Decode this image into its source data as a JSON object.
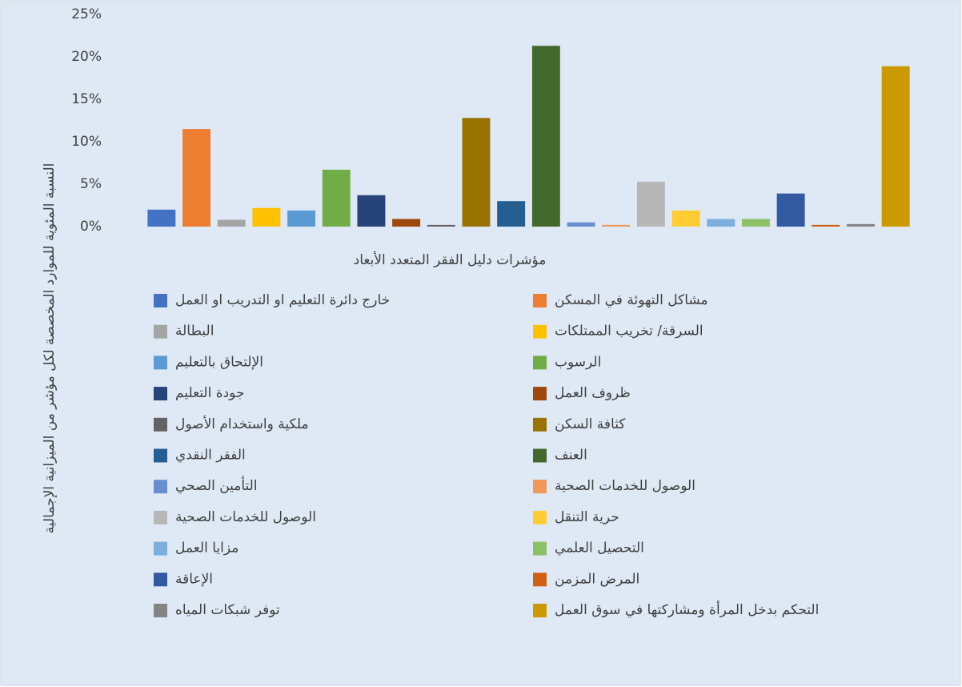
{
  "chart_data": {
    "type": "bar",
    "x_label": "مؤشرات دليل الفقر المتعدد الأبعاد",
    "y_label": "النسبة المئوية للموارد المخصصة لكل مؤشر من الميزانية الإجمالية",
    "categories": [
      "خارج دائرة التعليم او التدريب او العمل",
      "مشاكل التهوئة في المسكن",
      "البطالة",
      "السرقة/ تخريب الممتلكات",
      "الإلتحاق بالتعليم",
      "الرسوب",
      "جودة التعليم",
      "ظروف العمل",
      "ملكية واستخدام الأصول",
      "كثافة السكن",
      "الفقر النقدي",
      "العنف",
      "التأمين الصحي",
      "الوصول للخدمات الصحية",
      "الوصول للخدمات الصحية",
      "حرية التنقل",
      "مزايا العمل",
      "التحصيل العلمي",
      "الإعاقة",
      "المرض المزمن",
      "توفر شبكات المياه",
      "التحكم بدخل المرأة ومشاركتها في سوق العمل"
    ],
    "values": [
      2.0,
      11.5,
      0.8,
      2.2,
      1.9,
      6.7,
      3.7,
      0.9,
      0.2,
      12.8,
      3.0,
      21.3,
      0.5,
      0.2,
      5.3,
      1.9,
      0.9,
      0.9,
      3.9,
      0.2,
      0.3,
      18.9
    ],
    "colors": [
      "#4472c4",
      "#ed7d31",
      "#a5a5a5",
      "#ffc000",
      "#5b9bd5",
      "#70ad47",
      "#264478",
      "#9e480e",
      "#636363",
      "#997300",
      "#255e91",
      "#43682b",
      "#698ed0",
      "#f1975a",
      "#b7b7b7",
      "#ffcd33",
      "#7cafdd",
      "#8cc168",
      "#335aa1",
      "#d26012",
      "#848484",
      "#cc9a00"
    ],
    "ylim": [
      0,
      25
    ],
    "yticks": [
      {
        "value": 0,
        "label": "0%"
      },
      {
        "value": 5,
        "label": "5%"
      },
      {
        "value": 10,
        "label": "10%"
      },
      {
        "value": 15,
        "label": "15%"
      },
      {
        "value": 20,
        "label": "20%"
      },
      {
        "value": 25,
        "label": "25%"
      }
    ],
    "grid": false
  }
}
